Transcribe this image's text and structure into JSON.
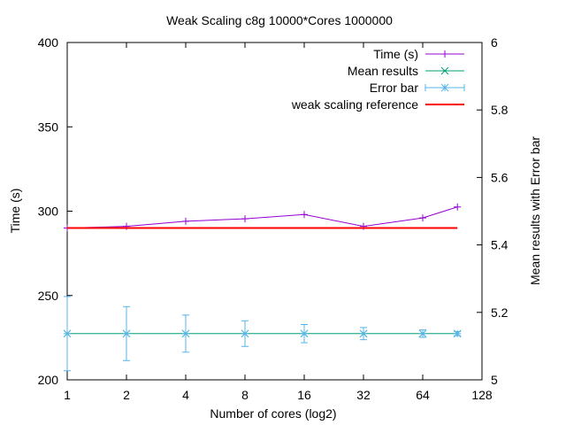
{
  "chart_data": {
    "type": "line",
    "title": "Weak Scaling c8g 10000*Cores 1000000",
    "xlabel": "Number of cores (log2)",
    "ylabel": "Time (s)",
    "y2label": "Mean results with Error bar",
    "x_scale": "log2",
    "xlim": [
      1,
      128
    ],
    "ylim": [
      200,
      400
    ],
    "y2lim": [
      5,
      6
    ],
    "x_ticks": [
      "1",
      "2",
      "4",
      "8",
      "16",
      "32",
      "64",
      "128"
    ],
    "y_ticks": [
      "200",
      "250",
      "300",
      "350",
      "400"
    ],
    "y2_ticks": [
      "5",
      "5.2",
      "5.4",
      "5.6",
      "5.8",
      "6"
    ],
    "legend_position": "top-right",
    "series": [
      {
        "name": "Time (s)",
        "axis": "y",
        "color": "#9400d3",
        "marker": "plus",
        "x": [
          1,
          2,
          4,
          8,
          16,
          32,
          64,
          96
        ],
        "values": [
          290,
          291,
          294,
          295.5,
          298,
          291,
          296,
          302.5
        ]
      },
      {
        "name": "Mean results",
        "axis": "y2",
        "color": "#009e73",
        "marker": "cross",
        "x": [
          1,
          2,
          4,
          8,
          16,
          32,
          64,
          96
        ],
        "values": [
          5.137,
          5.137,
          5.137,
          5.137,
          5.137,
          5.137,
          5.137,
          5.137
        ]
      },
      {
        "name": "Error bar",
        "axis": "y2",
        "color": "#56b4e9",
        "marker": "star",
        "x": [
          1,
          2,
          4,
          8,
          16,
          32,
          64,
          96
        ],
        "values": [
          5.137,
          5.137,
          5.137,
          5.137,
          5.137,
          5.137,
          5.137,
          5.137
        ],
        "error": [
          0.11,
          0.08,
          0.055,
          0.038,
          0.027,
          0.018,
          0.011,
          0.006
        ]
      },
      {
        "name": "weak scaling reference",
        "axis": "y",
        "color": "#ff0000",
        "marker": "none",
        "x": [
          1,
          96
        ],
        "values": [
          290,
          290
        ]
      }
    ]
  }
}
